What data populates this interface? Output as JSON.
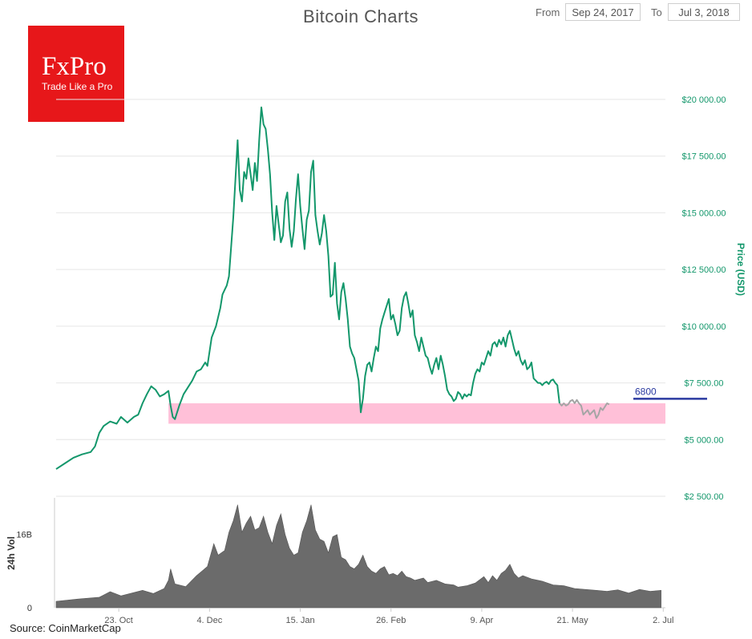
{
  "header": {
    "title": "Bitcoin Charts",
    "from_label": "From",
    "from_value": "Sep 24, 2017",
    "to_label": "To",
    "to_value": "Jul 3, 2018"
  },
  "logo": {
    "name": "FxPro",
    "tagline": "Trade Like a Pro"
  },
  "source": "Source: CoinMarketCap",
  "colors": {
    "price_line": "#13976b",
    "price_line_recent": "#a5a5a5",
    "support_zone": "#ffc0d8",
    "resistance_line": "#2a3aa0",
    "volume_fill": "#6b6b6b",
    "axis_label": "#13976b",
    "grid": "#e6e6e6",
    "logo_bg": "#e7171a"
  },
  "chart_data": [
    {
      "type": "line",
      "title": "Bitcoin Charts",
      "ylabel": "Price (USD)",
      "ylim": [
        2500,
        20000
      ],
      "yticks": [
        {
          "value": 20000,
          "label": "$20 000.00"
        },
        {
          "value": 17500,
          "label": "$17 500.00"
        },
        {
          "value": 15000,
          "label": "$15 000.00"
        },
        {
          "value": 12500,
          "label": "$12 500.00"
        },
        {
          "value": 10000,
          "label": "$10 000.00"
        },
        {
          "value": 7500,
          "label": "$7 500.00"
        },
        {
          "value": 5000,
          "label": "$5 000.00"
        },
        {
          "value": 2500,
          "label": "$2 500.00"
        }
      ],
      "xticks": [
        {
          "day": 29,
          "label": "23. Oct"
        },
        {
          "day": 71,
          "label": "4. Dec"
        },
        {
          "day": 113,
          "label": "15. Jan"
        },
        {
          "day": 155,
          "label": "26. Feb"
        },
        {
          "day": 197,
          "label": "9. Apr"
        },
        {
          "day": 239,
          "label": "21. May"
        },
        {
          "day": 281,
          "label": "2. Jul"
        }
      ],
      "x_unit": "days since Sep 24, 2017",
      "xlim": [
        0,
        282
      ],
      "price_points": [
        [
          0,
          3700
        ],
        [
          4,
          3950
        ],
        [
          8,
          4200
        ],
        [
          12,
          4350
        ],
        [
          16,
          4450
        ],
        [
          18,
          4700
        ],
        [
          20,
          5300
        ],
        [
          22,
          5600
        ],
        [
          25,
          5800
        ],
        [
          28,
          5700
        ],
        [
          30,
          6000
        ],
        [
          33,
          5750
        ],
        [
          36,
          6000
        ],
        [
          38,
          6100
        ],
        [
          40,
          6600
        ],
        [
          42,
          7000
        ],
        [
          44,
          7350
        ],
        [
          46,
          7200
        ],
        [
          48,
          6900
        ],
        [
          50,
          7000
        ],
        [
          52,
          7150
        ],
        [
          53,
          6500
        ],
        [
          54,
          6000
        ],
        [
          55,
          5900
        ],
        [
          57,
          6500
        ],
        [
          59,
          7000
        ],
        [
          61,
          7300
        ],
        [
          63,
          7600
        ],
        [
          65,
          8000
        ],
        [
          67,
          8100
        ],
        [
          69,
          8400
        ],
        [
          70,
          8250
        ],
        [
          72,
          9500
        ],
        [
          74,
          10000
        ],
        [
          76,
          10800
        ],
        [
          77,
          11400
        ],
        [
          78,
          11600
        ],
        [
          79,
          11800
        ],
        [
          80,
          12200
        ],
        [
          81,
          13500
        ],
        [
          82,
          14800
        ],
        [
          83,
          16500
        ],
        [
          84,
          18200
        ],
        [
          85,
          16000
        ],
        [
          86,
          15500
        ],
        [
          87,
          16800
        ],
        [
          88,
          16500
        ],
        [
          89,
          17400
        ],
        [
          90,
          16700
        ],
        [
          91,
          16000
        ],
        [
          92,
          17200
        ],
        [
          93,
          16400
        ],
        [
          94,
          18200
        ],
        [
          95,
          19650
        ],
        [
          96,
          18900
        ],
        [
          97,
          18700
        ],
        [
          98,
          17800
        ],
        [
          99,
          16700
        ],
        [
          100,
          15000
        ],
        [
          101,
          13800
        ],
        [
          102,
          15300
        ],
        [
          103,
          14500
        ],
        [
          104,
          13700
        ],
        [
          105,
          14000
        ],
        [
          106,
          15500
        ],
        [
          107,
          15900
        ],
        [
          108,
          14300
        ],
        [
          109,
          13500
        ],
        [
          110,
          14200
        ],
        [
          111,
          15600
        ],
        [
          112,
          16700
        ],
        [
          113,
          15300
        ],
        [
          114,
          14300
        ],
        [
          115,
          13400
        ],
        [
          116,
          14700
        ],
        [
          117,
          15100
        ],
        [
          118,
          16800
        ],
        [
          119,
          17300
        ],
        [
          120,
          14900
        ],
        [
          121,
          14200
        ],
        [
          122,
          13600
        ],
        [
          123,
          14100
        ],
        [
          124,
          14900
        ],
        [
          125,
          14200
        ],
        [
          126,
          13100
        ],
        [
          127,
          11300
        ],
        [
          128,
          11400
        ],
        [
          129,
          12800
        ],
        [
          130,
          11000
        ],
        [
          131,
          10300
        ],
        [
          132,
          11500
        ],
        [
          133,
          11900
        ],
        [
          134,
          11200
        ],
        [
          135,
          10300
        ],
        [
          136,
          9100
        ],
        [
          137,
          8800
        ],
        [
          138,
          8600
        ],
        [
          139,
          8100
        ],
        [
          140,
          7600
        ],
        [
          141,
          6200
        ],
        [
          142,
          6800
        ],
        [
          143,
          7800
        ],
        [
          144,
          8300
        ],
        [
          145,
          8400
        ],
        [
          146,
          8000
        ],
        [
          147,
          8600
        ],
        [
          148,
          9100
        ],
        [
          149,
          8900
        ],
        [
          150,
          9900
        ],
        [
          151,
          10300
        ],
        [
          152,
          10600
        ],
        [
          153,
          10900
        ],
        [
          154,
          11200
        ],
        [
          155,
          10300
        ],
        [
          156,
          10500
        ],
        [
          157,
          10100
        ],
        [
          158,
          9600
        ],
        [
          159,
          9800
        ],
        [
          160,
          10800
        ],
        [
          161,
          11300
        ],
        [
          162,
          11500
        ],
        [
          163,
          11000
        ],
        [
          164,
          10400
        ],
        [
          165,
          10700
        ],
        [
          166,
          9600
        ],
        [
          167,
          9300
        ],
        [
          168,
          8900
        ],
        [
          169,
          9500
        ],
        [
          170,
          9100
        ],
        [
          171,
          8700
        ],
        [
          172,
          8600
        ],
        [
          173,
          8200
        ],
        [
          174,
          7900
        ],
        [
          175,
          8300
        ],
        [
          176,
          8600
        ],
        [
          177,
          8100
        ],
        [
          178,
          8700
        ],
        [
          179,
          8300
        ],
        [
          180,
          7800
        ],
        [
          181,
          7200
        ],
        [
          182,
          7000
        ],
        [
          183,
          6900
        ],
        [
          184,
          6700
        ],
        [
          185,
          6800
        ],
        [
          186,
          7100
        ],
        [
          187,
          7000
        ],
        [
          188,
          6800
        ],
        [
          189,
          7000
        ],
        [
          190,
          6900
        ],
        [
          191,
          7000
        ],
        [
          192,
          6950
        ],
        [
          193,
          7500
        ],
        [
          194,
          7900
        ],
        [
          195,
          8100
        ],
        [
          196,
          8000
        ],
        [
          197,
          8400
        ],
        [
          198,
          8300
        ],
        [
          199,
          8600
        ],
        [
          200,
          8900
        ],
        [
          201,
          8700
        ],
        [
          202,
          9200
        ],
        [
          203,
          9300
        ],
        [
          204,
          9100
        ],
        [
          205,
          9400
        ],
        [
          206,
          9200
        ],
        [
          207,
          9500
        ],
        [
          208,
          9100
        ],
        [
          209,
          9600
        ],
        [
          210,
          9800
        ],
        [
          211,
          9400
        ],
        [
          212,
          9000
        ],
        [
          213,
          8700
        ],
        [
          214,
          8900
        ],
        [
          215,
          8500
        ],
        [
          216,
          8300
        ],
        [
          217,
          8500
        ],
        [
          218,
          8100
        ],
        [
          219,
          8200
        ],
        [
          220,
          8400
        ],
        [
          221,
          7700
        ],
        [
          222,
          7600
        ],
        [
          223,
          7500
        ],
        [
          224,
          7500
        ],
        [
          225,
          7400
        ],
        [
          226,
          7500
        ],
        [
          227,
          7550
        ],
        [
          228,
          7450
        ],
        [
          229,
          7600
        ],
        [
          230,
          7650
        ],
        [
          231,
          7500
        ],
        [
          232,
          7400
        ],
        [
          233,
          6600
        ],
        [
          234,
          6500
        ],
        [
          235,
          6600
        ],
        [
          236,
          6500
        ],
        [
          237,
          6550
        ],
        [
          238,
          6700
        ],
        [
          239,
          6750
        ],
        [
          240,
          6600
        ],
        [
          241,
          6750
        ],
        [
          242,
          6600
        ],
        [
          243,
          6500
        ],
        [
          244,
          6100
        ],
        [
          245,
          6200
        ],
        [
          246,
          6300
        ],
        [
          247,
          6100
        ],
        [
          248,
          6200
        ],
        [
          249,
          6300
        ],
        [
          250,
          5950
        ],
        [
          251,
          6100
        ],
        [
          252,
          6400
        ],
        [
          253,
          6300
        ],
        [
          254,
          6450
        ],
        [
          255,
          6600
        ],
        [
          256,
          6550
        ]
      ],
      "recent_from_day": 233,
      "support_zone": [
        5700,
        6600
      ],
      "resistance_line": {
        "value": 6800,
        "label": "6800"
      }
    },
    {
      "type": "area",
      "ylabel": "24h Vol",
      "yticks": [
        {
          "value": 0,
          "label": "0"
        },
        {
          "value": 16,
          "label": "16B"
        }
      ],
      "volume_points": [
        [
          0,
          1.4
        ],
        [
          10,
          1.9
        ],
        [
          20,
          2.3
        ],
        [
          25,
          3.5
        ],
        [
          30,
          2.6
        ],
        [
          40,
          3.8
        ],
        [
          45,
          3.1
        ],
        [
          50,
          4.2
        ],
        [
          52,
          6.0
        ],
        [
          53,
          8.5
        ],
        [
          55,
          5.2
        ],
        [
          60,
          4.6
        ],
        [
          65,
          7.0
        ],
        [
          70,
          9.0
        ],
        [
          73,
          14.0
        ],
        [
          75,
          11.5
        ],
        [
          78,
          12.5
        ],
        [
          80,
          16.5
        ],
        [
          82,
          19.0
        ],
        [
          84,
          22.5
        ],
        [
          86,
          16.5
        ],
        [
          88,
          18.5
        ],
        [
          90,
          20.0
        ],
        [
          92,
          17.0
        ],
        [
          94,
          17.5
        ],
        [
          96,
          20.0
        ],
        [
          98,
          16.5
        ],
        [
          100,
          14.0
        ],
        [
          102,
          18.0
        ],
        [
          104,
          20.5
        ],
        [
          106,
          16.0
        ],
        [
          108,
          13.0
        ],
        [
          110,
          11.5
        ],
        [
          112,
          12.0
        ],
        [
          114,
          16.5
        ],
        [
          116,
          19.0
        ],
        [
          118,
          22.5
        ],
        [
          120,
          17.0
        ],
        [
          122,
          15.0
        ],
        [
          124,
          14.5
        ],
        [
          126,
          12.0
        ],
        [
          128,
          15.5
        ],
        [
          130,
          16.0
        ],
        [
          132,
          11.0
        ],
        [
          134,
          10.5
        ],
        [
          136,
          9.0
        ],
        [
          138,
          8.5
        ],
        [
          140,
          9.5
        ],
        [
          142,
          11.5
        ],
        [
          144,
          9.0
        ],
        [
          146,
          8.0
        ],
        [
          148,
          7.5
        ],
        [
          150,
          8.5
        ],
        [
          152,
          9.0
        ],
        [
          154,
          7.2
        ],
        [
          156,
          7.5
        ],
        [
          158,
          7.0
        ],
        [
          160,
          8.0
        ],
        [
          162,
          6.8
        ],
        [
          164,
          6.5
        ],
        [
          166,
          6.0
        ],
        [
          170,
          6.5
        ],
        [
          172,
          5.5
        ],
        [
          176,
          6.0
        ],
        [
          180,
          5.2
        ],
        [
          184,
          5.0
        ],
        [
          186,
          4.5
        ],
        [
          190,
          4.8
        ],
        [
          194,
          5.4
        ],
        [
          198,
          6.8
        ],
        [
          200,
          5.5
        ],
        [
          202,
          7.0
        ],
        [
          204,
          6.0
        ],
        [
          206,
          7.5
        ],
        [
          208,
          8.2
        ],
        [
          210,
          9.5
        ],
        [
          212,
          7.5
        ],
        [
          214,
          6.5
        ],
        [
          216,
          7.0
        ],
        [
          220,
          6.3
        ],
        [
          225,
          5.8
        ],
        [
          230,
          5.0
        ],
        [
          235,
          4.8
        ],
        [
          240,
          4.2
        ],
        [
          245,
          4.0
        ],
        [
          250,
          3.8
        ],
        [
          255,
          3.6
        ],
        [
          260,
          3.9
        ],
        [
          265,
          3.2
        ],
        [
          270,
          4.0
        ],
        [
          275,
          3.6
        ],
        [
          280,
          3.8
        ]
      ],
      "ylim": [
        0,
        24
      ]
    }
  ]
}
